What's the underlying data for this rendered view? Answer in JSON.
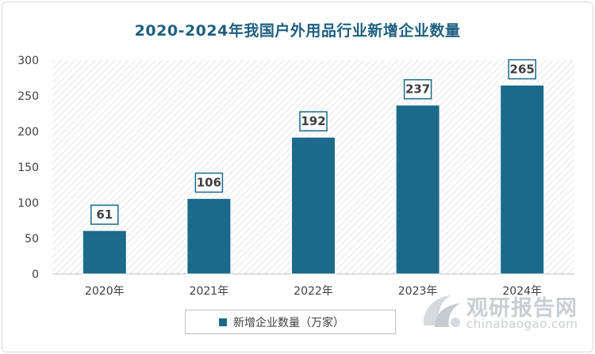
{
  "chart_data": {
    "type": "bar",
    "title": "2020-2024年我国户外用品行业新增企业数量",
    "categories": [
      "2020年",
      "2021年",
      "2022年",
      "2023年",
      "2024年"
    ],
    "series": [
      {
        "name": "新增企业数量（万家）",
        "values": [
          61,
          106,
          192,
          237,
          265
        ]
      }
    ],
    "ylim": [
      0,
      300
    ],
    "yticks": [
      0,
      50,
      100,
      150,
      200,
      250,
      300
    ],
    "xlabel": "",
    "ylabel": "",
    "grid": false,
    "legend_position": "bottom",
    "bar_color": "#1b6a8a",
    "title_color": "#1f5f80"
  },
  "watermark": {
    "brand_cn": "观研报告网",
    "brand_en": "chinabaogao.com"
  }
}
